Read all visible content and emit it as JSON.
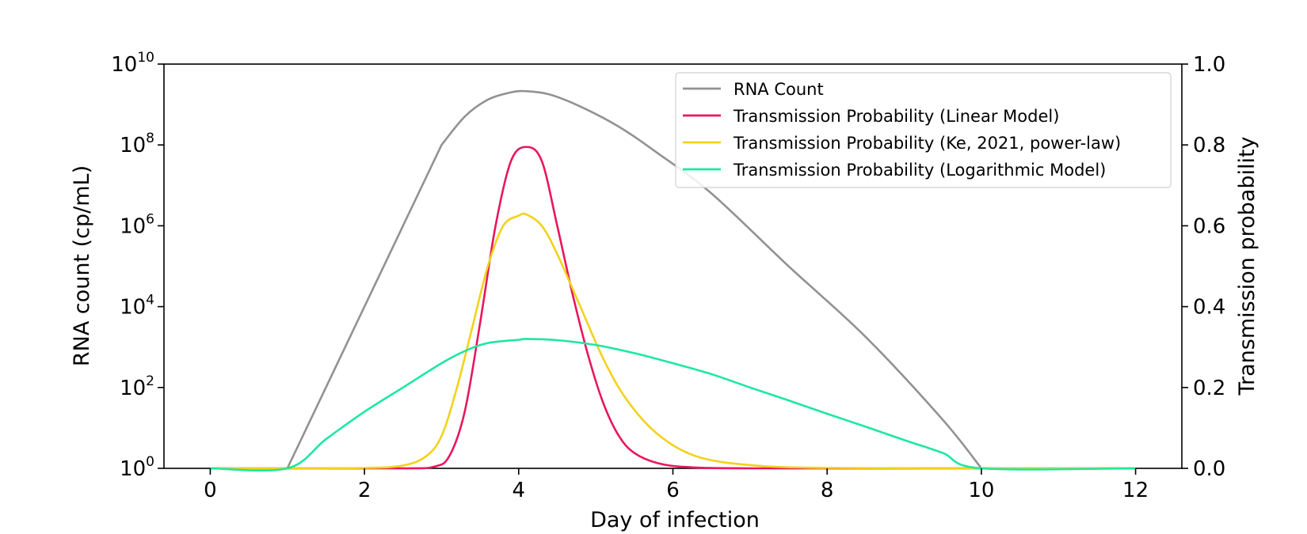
{
  "chart_data": {
    "type": "line",
    "xlabel": "Day of infection",
    "ylabel_left": "RNA count (cp/mL)",
    "ylabel_right": "Transmission probability",
    "xlim": [
      -0.6,
      12.6
    ],
    "ylim_left_log10": [
      0,
      10
    ],
    "ylim_right": [
      0,
      1.0
    ],
    "y_left_scale": "log",
    "grid": false,
    "legend_position": "top-right",
    "x_ticks": [
      "0",
      "2",
      "4",
      "6",
      "8",
      "10",
      "12"
    ],
    "x_tick_values": [
      0,
      2,
      4,
      6,
      8,
      10,
      12
    ],
    "y_left_ticks": [
      {
        "base": "10",
        "exp": "0",
        "value_log10": 0
      },
      {
        "base": "10",
        "exp": "2",
        "value_log10": 2
      },
      {
        "base": "10",
        "exp": "4",
        "value_log10": 4
      },
      {
        "base": "10",
        "exp": "6",
        "value_log10": 6
      },
      {
        "base": "10",
        "exp": "8",
        "value_log10": 8
      },
      {
        "base": "10",
        "exp": "10",
        "value_log10": 10
      }
    ],
    "y_right_ticks": [
      "0.0",
      "0.2",
      "0.4",
      "0.6",
      "0.8",
      "1.0"
    ],
    "y_right_tick_values": [
      0.0,
      0.2,
      0.4,
      0.6,
      0.8,
      1.0
    ],
    "series": [
      {
        "name": "RNA Count",
        "color": "#929292",
        "axis": "left",
        "x": [
          1.0,
          2.0,
          3.0,
          3.3,
          3.6,
          3.9,
          4.1,
          4.4,
          4.8,
          5.3,
          5.8,
          6.5,
          7.5,
          8.5,
          9.5,
          10.0
        ],
        "y_log10": [
          0.0,
          4.0,
          8.0,
          8.7,
          9.12,
          9.3,
          9.33,
          9.25,
          8.95,
          8.45,
          7.8,
          6.8,
          5.0,
          3.25,
          1.2,
          0.0
        ]
      },
      {
        "name": "Transmission Probability (Linear Model)",
        "color": "#e8175d",
        "axis": "right",
        "x": [
          0,
          1.0,
          2.5,
          2.9,
          3.1,
          3.3,
          3.5,
          3.7,
          3.9,
          4.1,
          4.3,
          4.5,
          4.7,
          4.9,
          5.1,
          5.3,
          5.5,
          5.8,
          6.2,
          7.0,
          10.0,
          12.0
        ],
        "y": [
          0.0,
          0.0,
          0.0,
          0.004,
          0.03,
          0.14,
          0.36,
          0.6,
          0.76,
          0.795,
          0.76,
          0.6,
          0.43,
          0.28,
          0.16,
          0.08,
          0.038,
          0.013,
          0.003,
          0.0,
          0.0,
          0.0
        ]
      },
      {
        "name": "Transmission Probability (Ke, 2021, power-law)",
        "color": "#f2d21b",
        "axis": "right",
        "x": [
          0,
          1.0,
          2.0,
          2.5,
          2.8,
          3.0,
          3.2,
          3.4,
          3.6,
          3.8,
          4.0,
          4.1,
          4.3,
          4.5,
          4.8,
          5.1,
          5.4,
          5.8,
          6.3,
          7.0,
          8.0,
          10.0,
          12.0
        ],
        "y": [
          0.0,
          0.0,
          0.001,
          0.007,
          0.03,
          0.08,
          0.2,
          0.35,
          0.5,
          0.6,
          0.625,
          0.628,
          0.6,
          0.53,
          0.4,
          0.27,
          0.17,
          0.085,
          0.03,
          0.008,
          0.001,
          0.0,
          0.0
        ]
      },
      {
        "name": "Transmission Probability (Logarithmic Model)",
        "color": "#1de8a1",
        "axis": "right",
        "x": [
          0,
          1.0,
          1.5,
          2.0,
          2.5,
          3.0,
          3.3,
          3.6,
          4.0,
          4.1,
          4.5,
          5.0,
          5.5,
          6.0,
          6.5,
          7.0,
          7.5,
          8.0,
          8.5,
          9.0,
          9.5,
          10.0,
          12.0
        ],
        "y": [
          0.0,
          0.0,
          0.072,
          0.14,
          0.2,
          0.26,
          0.29,
          0.31,
          0.318,
          0.32,
          0.317,
          0.305,
          0.285,
          0.26,
          0.233,
          0.2,
          0.168,
          0.135,
          0.103,
          0.07,
          0.038,
          0.0,
          0.0
        ]
      }
    ]
  }
}
